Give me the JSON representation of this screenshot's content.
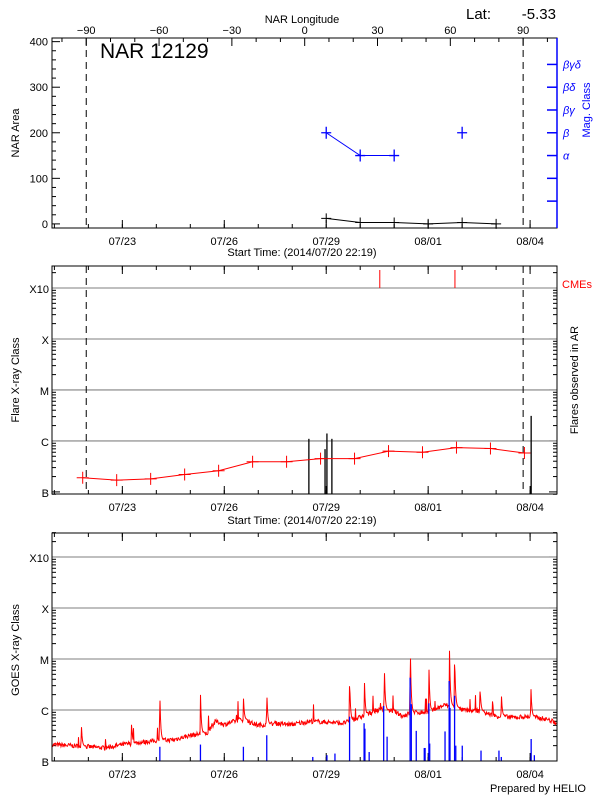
{
  "header": {
    "lat_label": "Lat:",
    "lat_value": "-5.33",
    "footer": "Prepared by HELIO"
  },
  "colors": {
    "area": "#000000",
    "mag_class": "#0000ff",
    "flare_avg": "#ff0000",
    "cme": "#ff0000",
    "goes": "#ff0000",
    "ar_flares": "#0000ff",
    "grid": "#999999"
  },
  "chart_data": [
    {
      "type": "line",
      "title": "NAR 12129",
      "xlabel": "Start Time: (2014/07/20 22:19)",
      "top_xlabel": "NAR Longitude",
      "ylabel": "NAR Area",
      "y2label": "Mag. Class",
      "xlim": [
        "2014-07-20 22:19",
        "2014-08-04 19:00"
      ],
      "ylim": [
        -9,
        408
      ],
      "yticks": [
        0,
        100,
        200,
        300,
        400
      ],
      "date_ticks": [
        {
          "time": "2014-07-23 00:00",
          "label": "07/23"
        },
        {
          "time": "2014-07-26 00:00",
          "label": "07/26"
        },
        {
          "time": "2014-07-29 00:00",
          "label": "07/29"
        },
        {
          "time": "2014-08-01 00:00",
          "label": "08/01"
        },
        {
          "time": "2014-08-04 00:00",
          "label": "08/04"
        }
      ],
      "longitude_ticks": [
        -90,
        -60,
        -30,
        0,
        30,
        60,
        90
      ],
      "longitude_reference": {
        "minus90_time": "2014-07-21 22:30",
        "plus90_time": "2014-08-03 19:05"
      },
      "limb_lines": [
        "2014-07-21 22:30",
        "2014-08-03 19:05"
      ],
      "area_series": {
        "x": [
          "2014-07-29 00:00",
          "2014-07-30 00:00",
          "2014-07-31 00:00",
          "2014-08-01 00:00",
          "2014-08-02 00:00",
          "2014-08-03 00:00"
        ],
        "y": [
          12,
          3,
          3,
          0,
          3,
          0
        ]
      },
      "mag_class_ticks": [
        {
          "value": 50,
          "label": ""
        },
        {
          "value": 100,
          "label": ""
        },
        {
          "value": 150,
          "label": "α"
        },
        {
          "value": 200,
          "label": "β"
        },
        {
          "value": 250,
          "label": "βγ"
        },
        {
          "value": 300,
          "label": "βδ"
        },
        {
          "value": 350,
          "label": "βγδ"
        }
      ],
      "mag_class_segments": [
        [
          {
            "x": "2014-07-29 00:00",
            "class": "β"
          },
          {
            "x": "2014-07-30 00:00",
            "class": "α"
          },
          {
            "x": "2014-07-31 00:00",
            "class": "α"
          }
        ],
        [
          {
            "x": "2014-08-02 00:00",
            "class": "β"
          }
        ]
      ]
    },
    {
      "type": "line",
      "xlabel": "Start Time: (2014/07/20 22:19)",
      "ylabel": "Flare X-ray Class",
      "y2label": "Flares observed in AR",
      "cme_label": "CMEs",
      "yscale": "log",
      "xlim": [
        "2014-07-20 22:19",
        "2014-08-04 19:00"
      ],
      "ylim": [
        9.1e-08,
        0.0027
      ],
      "class_ticks": [
        {
          "value": 1e-07,
          "label": "B"
        },
        {
          "value": 1e-06,
          "label": "C"
        },
        {
          "value": 1e-05,
          "label": "M"
        },
        {
          "value": 0.0001,
          "label": "X"
        },
        {
          "value": 0.001,
          "label": "X10"
        }
      ],
      "grid": true,
      "limb_lines": [
        "2014-07-21 22:30",
        "2014-08-03 19:05"
      ],
      "average_series": {
        "x": [
          "2014-07-21 20:00",
          "2014-07-22 20:00",
          "2014-07-23 20:00",
          "2014-07-24 20:00",
          "2014-07-25 20:00",
          "2014-07-26 20:00",
          "2014-07-27 20:00",
          "2014-07-28 20:00",
          "2014-07-29 20:00",
          "2014-07-30 20:00",
          "2014-07-31 20:00",
          "2014-08-01 20:00",
          "2014-08-02 20:00",
          "2014-08-03 20:00"
        ],
        "y": [
          1.9e-07,
          1.7e-07,
          1.8e-07,
          2.2e-07,
          2.6e-07,
          3.9e-07,
          3.9e-07,
          4.5e-07,
          4.5e-07,
          6.3e-07,
          6e-07,
          7.4e-07,
          7.1e-07,
          5.8e-07
        ]
      },
      "flares": [
        {
          "x": "2014-07-28 11:45",
          "peak": 1.1e-06
        },
        {
          "x": "2014-07-28 23:10",
          "peak": 6.9e-07
        },
        {
          "x": "2014-07-29 00:30",
          "peak": 1.4e-06
        },
        {
          "x": "2014-07-29 04:00",
          "peak": 1.1e-06
        },
        {
          "x": "2014-08-04 00:45",
          "peak": 3.1e-06
        }
      ],
      "cmes": [
        "2014-07-30 13:50",
        "2014-08-01 18:55"
      ]
    },
    {
      "type": "line",
      "ylabel": "GOES X-ray Class",
      "yscale": "log",
      "xlim": [
        "2014-07-20 22:19",
        "2014-08-04 19:00"
      ],
      "ylim": [
        1e-07,
        0.00295
      ],
      "class_ticks": [
        {
          "value": 1e-07,
          "label": "B"
        },
        {
          "value": 1e-06,
          "label": "C"
        },
        {
          "value": 1e-05,
          "label": "M"
        },
        {
          "value": 0.0001,
          "label": "X"
        },
        {
          "value": 0.001,
          "label": "X10"
        }
      ],
      "grid": true,
      "goes_background": {
        "x": [
          "2014-07-20 22:19",
          "2014-07-21 12:00",
          "2014-07-22 00:00",
          "2014-07-22 12:00",
          "2014-07-23 00:00",
          "2014-07-23 12:00",
          "2014-07-24 00:00",
          "2014-07-24 12:00",
          "2014-07-25 00:00",
          "2014-07-25 12:00",
          "2014-07-25 18:00",
          "2014-07-26 00:00",
          "2014-07-26 12:00",
          "2014-07-27 00:00",
          "2014-07-27 12:00",
          "2014-07-28 00:00",
          "2014-07-28 12:00",
          "2014-07-29 00:00",
          "2014-07-29 12:00",
          "2014-07-30 00:00",
          "2014-07-30 12:00",
          "2014-07-31 00:00",
          "2014-07-31 06:00",
          "2014-07-31 12:00",
          "2014-08-01 00:00",
          "2014-08-01 12:00",
          "2014-08-02 00:00",
          "2014-08-02 12:00",
          "2014-08-03 00:00",
          "2014-08-03 12:00",
          "2014-08-04 00:00",
          "2014-08-04 12:00",
          "2014-08-04 19:00"
        ],
        "y": [
          2.1e-07,
          2e-07,
          1.9e-07,
          1.8e-07,
          2.1e-07,
          2.3e-07,
          2.5e-07,
          2.6e-07,
          3.2e-07,
          3.5e-07,
          6e-07,
          5.2e-07,
          6.6e-07,
          5e-07,
          5.4e-07,
          5.2e-07,
          6e-07,
          5.8e-07,
          5.5e-07,
          7.2e-07,
          1e-06,
          9.5e-07,
          7.6e-07,
          8.9e-07,
          9.1e-07,
          1.26e-06,
          1e-06,
          9.5e-07,
          7.6e-07,
          7.2e-07,
          7.4e-07,
          6.6e-07,
          5.5e-07
        ]
      },
      "goes_peaks": [
        {
          "x": "2014-07-21 19:00",
          "peak": 5.9e-07
        },
        {
          "x": "2014-07-23 06:30",
          "peak": 5.8e-07
        },
        {
          "x": "2014-07-24 02:30",
          "peak": 2.1e-06
        },
        {
          "x": "2014-07-25 07:10",
          "peak": 2.2e-06
        },
        {
          "x": "2014-07-26 13:30",
          "peak": 1.9e-06
        },
        {
          "x": "2014-07-27 06:00",
          "peak": 2.6e-06
        },
        {
          "x": "2014-07-29 16:30",
          "peak": 4.7e-06
        },
        {
          "x": "2014-07-30 03:00",
          "peak": 3.7e-06
        },
        {
          "x": "2014-07-30 17:00",
          "peak": 8.9e-06
        },
        {
          "x": "2014-07-31 11:20",
          "peak": 2.6e-05
        },
        {
          "x": "2014-08-01 00:30",
          "peak": 8.5e-06
        },
        {
          "x": "2014-08-01 15:00",
          "peak": 2e-05
        },
        {
          "x": "2014-08-01 18:40",
          "peak": 1.5e-05
        },
        {
          "x": "2014-08-02 12:40",
          "peak": 2.9e-06
        },
        {
          "x": "2014-08-03 03:40",
          "peak": 2.3e-06
        },
        {
          "x": "2014-08-04 00:30",
          "peak": 3.5e-06
        }
      ],
      "event_bars": [
        {
          "x": "2014-07-24 02:30",
          "peak": 1.9e-07
        },
        {
          "x": "2014-07-25 07:10",
          "peak": 2.1e-07
        },
        {
          "x": "2014-07-26 13:30",
          "peak": 1.9e-07
        },
        {
          "x": "2014-07-27 06:00",
          "peak": 3.2e-07
        },
        {
          "x": "2014-07-28 14:30",
          "peak": 1.2e-07
        },
        {
          "x": "2014-07-29 00:30",
          "peak": 1.3e-07
        },
        {
          "x": "2014-07-29 06:10",
          "peak": 1.4e-07
        },
        {
          "x": "2014-07-29 16:30",
          "peak": 7.4e-07
        },
        {
          "x": "2014-07-30 02:45",
          "peak": 5.5e-07
        },
        {
          "x": "2014-07-30 03:20",
          "peak": 4.3e-07
        },
        {
          "x": "2014-07-30 06:20",
          "peak": 1.5e-07
        },
        {
          "x": "2014-07-30 16:35",
          "peak": 1.2e-06
        },
        {
          "x": "2014-07-30 19:00",
          "peak": 3e-07
        },
        {
          "x": "2014-07-31 11:15",
          "peak": 4.3e-06
        },
        {
          "x": "2014-07-31 12:05",
          "peak": 1.3e-06
        },
        {
          "x": "2014-07-31 15:35",
          "peak": 3.9e-07
        },
        {
          "x": "2014-07-31 21:15",
          "peak": 1.8e-07
        },
        {
          "x": "2014-07-31 21:50",
          "peak": 1.8e-07
        },
        {
          "x": "2014-08-01 00:30",
          "peak": 1.35e-06
        },
        {
          "x": "2014-08-01 01:05",
          "peak": 2.2e-07
        },
        {
          "x": "2014-08-01 11:55",
          "peak": 3.8e-07
        },
        {
          "x": "2014-08-01 14:50",
          "peak": 3.7e-06
        },
        {
          "x": "2014-08-01 15:25",
          "peak": 1.1e-06
        },
        {
          "x": "2014-08-01 18:40",
          "peak": 1.9e-06
        },
        {
          "x": "2014-08-01 19:30",
          "peak": 2e-07
        },
        {
          "x": "2014-08-02 00:05",
          "peak": 2e-07
        },
        {
          "x": "2014-08-02 13:20",
          "peak": 1.6e-07
        },
        {
          "x": "2014-08-03 02:00",
          "peak": 1.6e-07
        },
        {
          "x": "2014-08-03 03:40",
          "peak": 1.2e-07
        },
        {
          "x": "2014-08-04 00:45",
          "peak": 2.7e-07
        },
        {
          "x": "2014-08-04 03:00",
          "peak": 1.3e-07
        }
      ]
    }
  ]
}
